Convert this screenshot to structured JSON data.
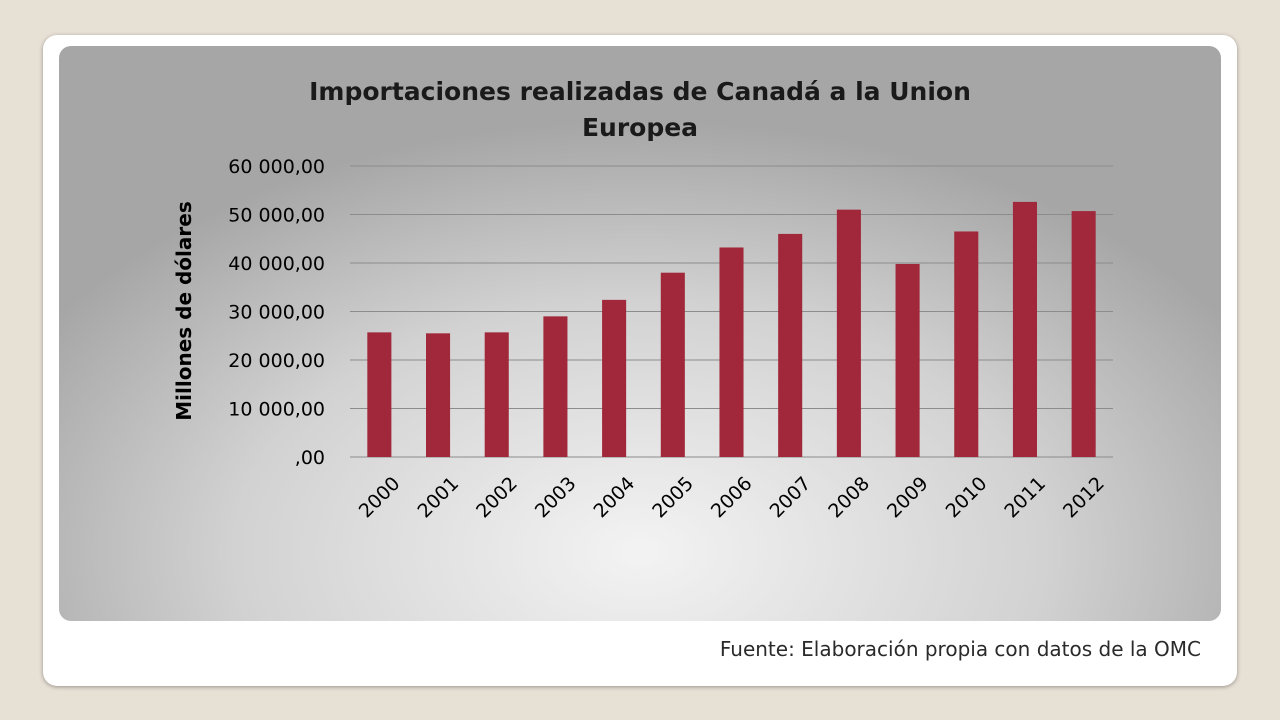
{
  "chart_data": {
    "type": "bar",
    "title": "Importaciones realizadas de Canadá a la Union Europea",
    "title_lines": [
      "Importaciones realizadas de Canadá a la Union",
      "Europea"
    ],
    "xlabel": "",
    "ylabel": "Millones de dólares",
    "categories": [
      "2000",
      "2001",
      "2002",
      "2003",
      "2004",
      "2005",
      "2006",
      "2007",
      "2008",
      "2009",
      "2010",
      "2011",
      "2012"
    ],
    "values": [
      25700,
      25500,
      25700,
      29000,
      32400,
      38000,
      43200,
      46000,
      51000,
      39800,
      46500,
      52600,
      50700
    ],
    "ylim": [
      0,
      60000
    ],
    "yticks": [
      0,
      10000,
      20000,
      30000,
      40000,
      50000,
      60000
    ],
    "ytick_labels": [
      ",00",
      "10 000,00",
      "20 000,00",
      "30 000,00",
      "40 000,00",
      "50 000,00",
      "60 000,00"
    ],
    "grid": true,
    "legend": "none",
    "bar_color": "#a0283a"
  },
  "footer": {
    "source": "Fuente: Elaboración propia con datos de la OMC"
  }
}
